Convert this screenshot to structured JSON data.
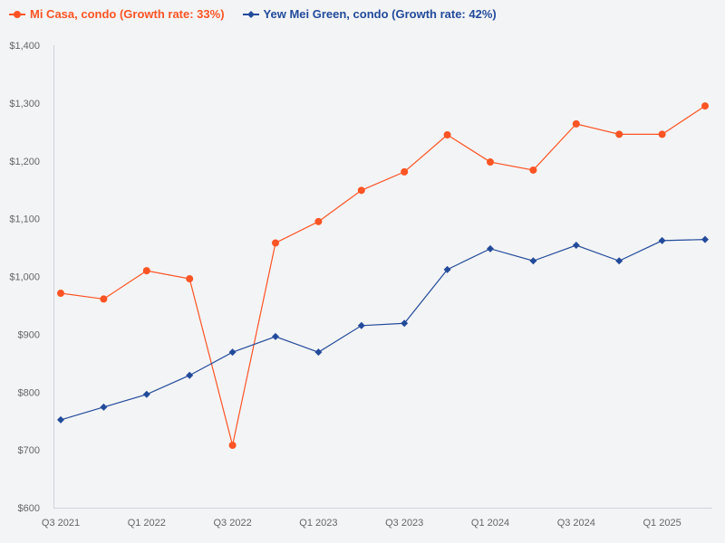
{
  "chart_data": {
    "type": "line",
    "title": "",
    "xlabel": "",
    "ylabel": "",
    "categories": [
      "Q3 2021",
      "Q4 2021",
      "Q1 2022",
      "Q2 2022",
      "Q3 2022",
      "Q4 2022",
      "Q1 2023",
      "Q2 2023",
      "Q3 2023",
      "Q4 2023",
      "Q1 2024",
      "Q2 2024",
      "Q3 2024",
      "Q4 2024",
      "Q1 2025",
      "Q2 2025"
    ],
    "x_tick_labels": [
      "Q3 2021",
      "Q1 2022",
      "Q3 2022",
      "Q1 2023",
      "Q3 2023",
      "Q1 2024",
      "Q3 2024",
      "Q1 2025"
    ],
    "y_tick_labels": [
      "$600",
      "$700",
      "$800",
      "$900",
      "$1,000",
      "$1,100",
      "$1,200",
      "$1,300",
      "$1,400"
    ],
    "ylim": [
      600,
      1400
    ],
    "grid": false,
    "legend_position": "top-left",
    "series": [
      {
        "name": "Mi Casa, condo (Growth rate: 33%)",
        "color": "#fc5424",
        "marker": "circle",
        "values": [
          971,
          961,
          1010,
          996,
          708,
          1058,
          1095,
          1149,
          1181,
          1245,
          1198,
          1184,
          1264,
          1246,
          1246,
          1295
        ]
      },
      {
        "name": "Yew Mei Green, condo (Growth rate: 42%)",
        "color": "#234b9b",
        "marker": "diamond",
        "values": [
          752,
          774,
          796,
          829,
          869,
          896,
          869,
          915,
          919,
          1012,
          1048,
          1027,
          1054,
          1027,
          1062,
          1064
        ]
      }
    ]
  }
}
